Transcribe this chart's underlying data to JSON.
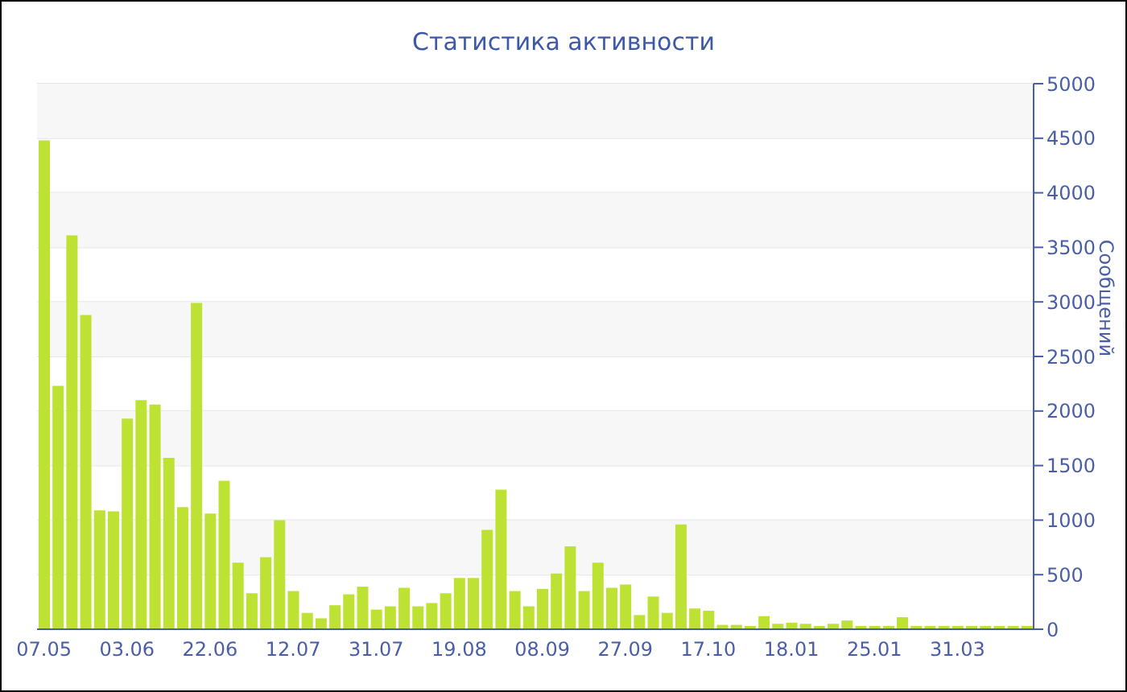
{
  "chart_data": {
    "type": "bar",
    "title": "Статистика активности",
    "ylabel": "Сообщений",
    "categories": [
      "07.05",
      null,
      null,
      null,
      null,
      null,
      "03.06",
      null,
      null,
      null,
      null,
      null,
      "22.06",
      null,
      null,
      null,
      null,
      null,
      "12.07",
      null,
      null,
      null,
      null,
      null,
      "31.07",
      null,
      null,
      null,
      null,
      null,
      "19.08",
      null,
      null,
      null,
      null,
      null,
      "08.09",
      null,
      null,
      null,
      null,
      null,
      "27.09",
      null,
      null,
      null,
      null,
      null,
      "17.10",
      null,
      null,
      null,
      null,
      null,
      "18.01",
      null,
      null,
      null,
      null,
      null,
      "25.01",
      null,
      null,
      null,
      null,
      null,
      "31.03",
      null,
      null,
      null,
      null,
      null
    ],
    "values": [
      4480,
      2230,
      3610,
      2880,
      1090,
      1080,
      1930,
      2100,
      2060,
      1570,
      1120,
      2990,
      1060,
      1360,
      610,
      330,
      660,
      1000,
      350,
      150,
      100,
      220,
      320,
      390,
      180,
      210,
      380,
      210,
      240,
      330,
      470,
      470,
      910,
      1280,
      350,
      210,
      370,
      510,
      760,
      350,
      610,
      380,
      410,
      130,
      300,
      150,
      960,
      190,
      170,
      40,
      40,
      30,
      120,
      50,
      60,
      50,
      30,
      50,
      80,
      30,
      30,
      30,
      110,
      30,
      30,
      30,
      30,
      30,
      30,
      30,
      30,
      30
    ],
    "color": "#bde234",
    "ylim": [
      0,
      5000
    ],
    "yticks": [
      0,
      500,
      1000,
      1500,
      2000,
      2500,
      3000,
      3500,
      4000,
      4500,
      5000
    ],
    "grid": "y"
  }
}
